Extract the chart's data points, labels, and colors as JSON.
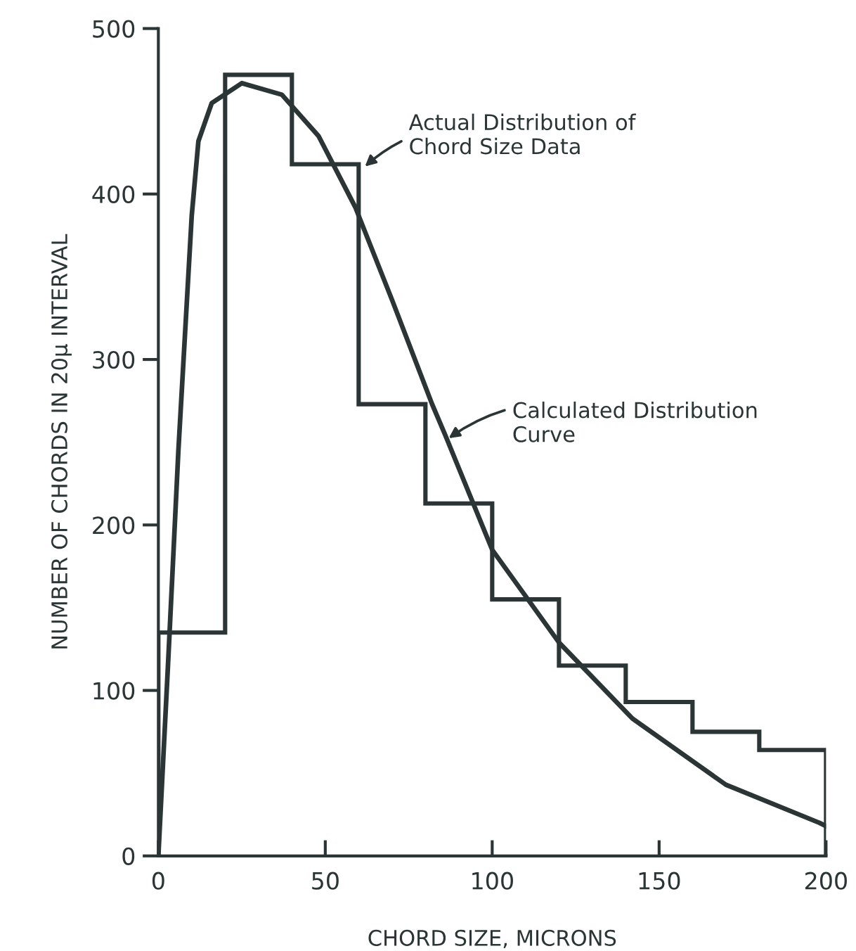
{
  "chart_data": {
    "type": "histogram",
    "xlabel": "CHORD SIZE, MICRONS",
    "ylabel": "NUMBER OF CHORDS IN 20μ INTERVAL",
    "bins": [
      0,
      20,
      40,
      60,
      80,
      100,
      120,
      140,
      160,
      180,
      200
    ],
    "values": [
      135,
      472,
      418,
      273,
      213,
      155,
      115,
      93,
      75,
      64
    ],
    "color": "#2b3535",
    "series": [
      {
        "type": "line",
        "color": "#2b3535",
        "x": [
          0,
          3,
          6,
          10,
          12,
          16,
          25,
          37,
          48,
          59,
          70,
          82,
          86,
          100,
          120,
          142,
          170,
          198,
          200
        ],
        "values": [
          0,
          120,
          245,
          387,
          432,
          455,
          467,
          460,
          435,
          392,
          336,
          273,
          254,
          185,
          129,
          83,
          43,
          20,
          18
        ]
      }
    ],
    "annotations": [
      {
        "text": "Actual Distribution of\nChord Size Data",
        "x": 61,
        "y": 415
      },
      {
        "text": "Calculated Distribution\nCurve",
        "x": 86,
        "y": 251
      }
    ],
    "xlim": [
      0,
      200
    ],
    "ylim": [
      0,
      500
    ],
    "xticks": [
      0,
      50,
      100,
      150,
      200
    ],
    "yticks": [
      0,
      100,
      200,
      300,
      400,
      500
    ],
    "grid": false,
    "legend": false
  }
}
